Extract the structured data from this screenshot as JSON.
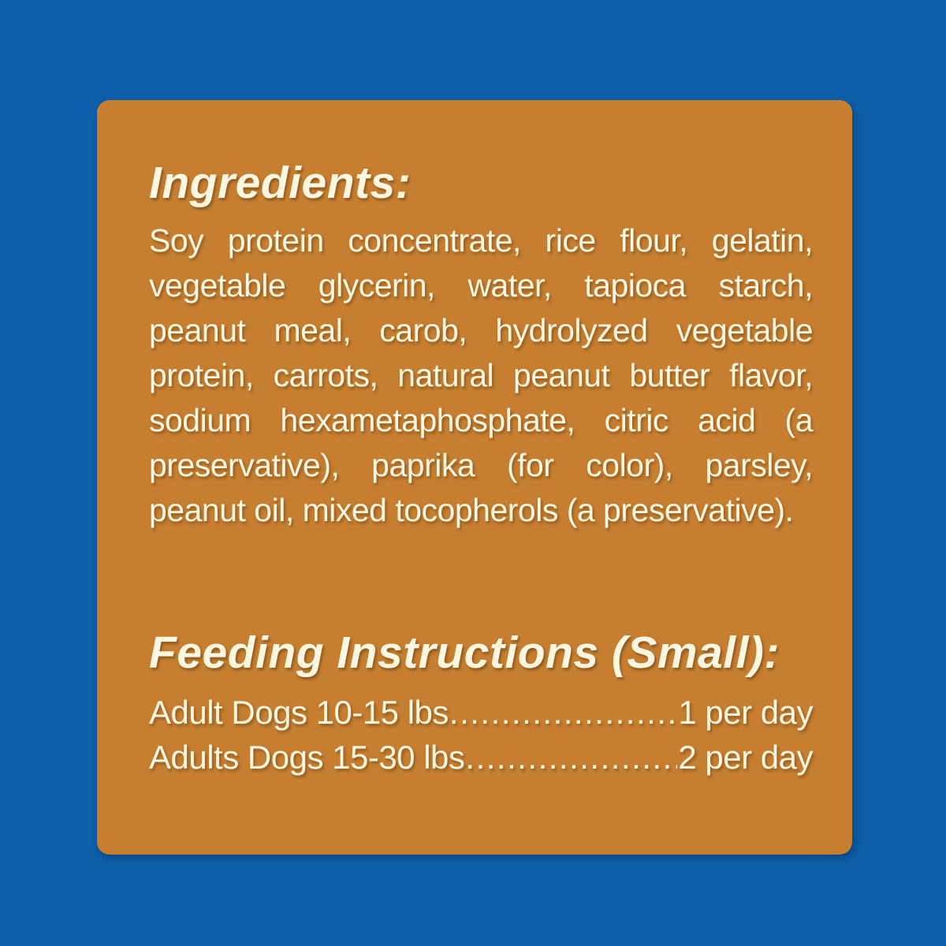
{
  "colors": {
    "background_blue": "#0e5fa9",
    "panel_orange": "#c67e30",
    "text_cream": "#fdf6e0"
  },
  "ingredients": {
    "heading": "Ingredients:",
    "body": "Soy protein concentrate, rice flour, gelatin, vegetable glycerin, water, tapioca starch, peanut meal, carob, hydrolyzed vegetable protein, carrots, natural peanut butter flavor, sodium hexametaphosphate, citric acid (a preservative), paprika (for color), parsley, peanut oil, mixed tocopherols (a preservative)."
  },
  "feeding": {
    "heading": "Feeding Instructions (Small):",
    "rows": [
      {
        "label": "Adult Dogs 10-15 lbs",
        "leader": "................................................................................",
        "value": "1 per day"
      },
      {
        "label": "Adults Dogs 15-30 lbs",
        "leader": "................................................................................",
        "value": "2 per day"
      }
    ]
  }
}
